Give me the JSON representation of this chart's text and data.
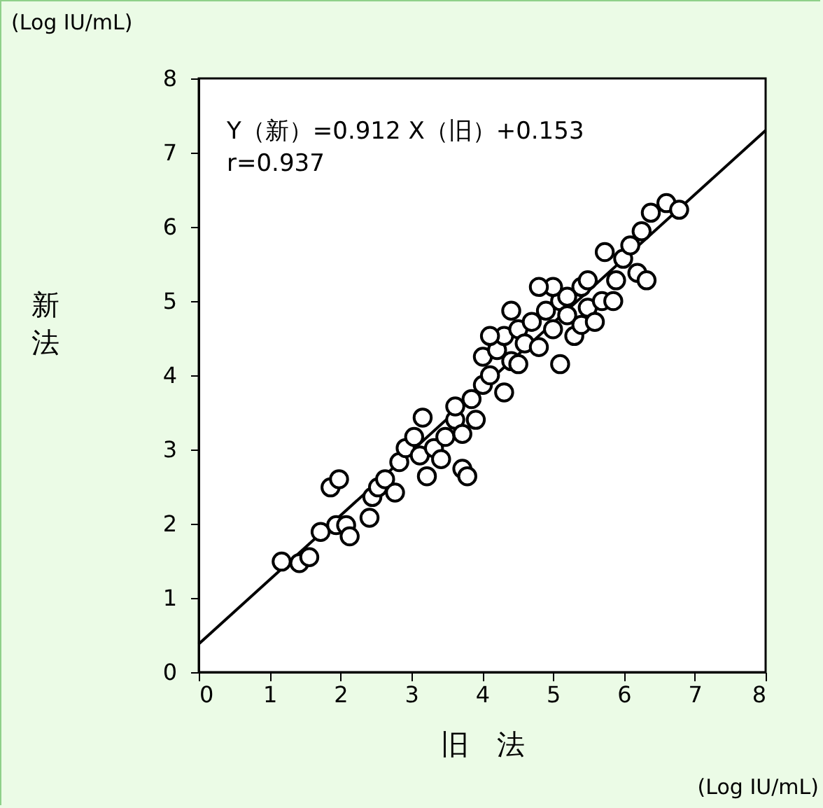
{
  "chart_data": {
    "type": "scatter",
    "xlabel": "旧　法",
    "ylabel": "新法",
    "xlim": [
      0,
      8
    ],
    "ylim": [
      0,
      8
    ],
    "xticks": [
      0,
      1,
      2,
      3,
      4,
      5,
      6,
      7,
      8
    ],
    "yticks": [
      0,
      1,
      2,
      3,
      4,
      5,
      6,
      7,
      8
    ],
    "grid": false,
    "annotations": [
      "Y（新）=0.912 X（旧）+0.153",
      "r=0.937",
      "(Log IU/mL)",
      "(Log IU/mL)"
    ],
    "series": [
      {
        "color": "#000000",
        "marker": "circle",
        "x": [
          1.17,
          1.42,
          1.56,
          1.86,
          1.98,
          1.72,
          1.94,
          2.08,
          2.13,
          2.41,
          2.45,
          2.53,
          2.63,
          2.77,
          2.83,
          2.92,
          3.04,
          3.12,
          3.22,
          3.32,
          3.16,
          3.48,
          3.62,
          3.72,
          3.79,
          3.62,
          3.85,
          4.01,
          4.11,
          4.01,
          4.21,
          4.41,
          4.31,
          4.51,
          4.7,
          4.6,
          4.8,
          4.9,
          5.1,
          5.0,
          5.2,
          5.3,
          5.4,
          5.49,
          5.69,
          5.89,
          5.99,
          6.09,
          6.19,
          6.25,
          6.32,
          6.38,
          6.6,
          6.78,
          5.73,
          5.4,
          5.59,
          5.85,
          4.11,
          3.72,
          3.42,
          4.31,
          3.91,
          4.51,
          5.0,
          5.2,
          4.8,
          5.1,
          5.49,
          4.41
        ],
        "values": [
          1.49,
          1.47,
          1.55,
          2.49,
          2.6,
          1.89,
          1.98,
          1.98,
          1.83,
          2.08,
          2.36,
          2.49,
          2.6,
          2.42,
          2.83,
          3.02,
          3.17,
          2.92,
          2.64,
          3.02,
          3.43,
          3.17,
          3.4,
          2.74,
          2.64,
          3.58,
          3.68,
          3.87,
          4.0,
          4.25,
          4.34,
          4.19,
          4.53,
          4.62,
          4.72,
          4.43,
          4.38,
          4.87,
          5.0,
          4.62,
          4.81,
          4.53,
          5.19,
          4.91,
          5.0,
          5.28,
          5.57,
          5.75,
          5.38,
          5.94,
          5.28,
          6.19,
          6.32,
          6.23,
          5.66,
          4.68,
          4.72,
          5.0,
          4.53,
          3.21,
          2.87,
          3.77,
          3.4,
          4.15,
          5.19,
          5.06,
          5.19,
          4.15,
          5.28,
          4.87
        ]
      },
      {
        "type": "line",
        "color": "#000000",
        "x": [
          0,
          8
        ],
        "values": [
          0.38,
          7.3
        ],
        "line_style": "solid",
        "marker": "none"
      }
    ]
  }
}
